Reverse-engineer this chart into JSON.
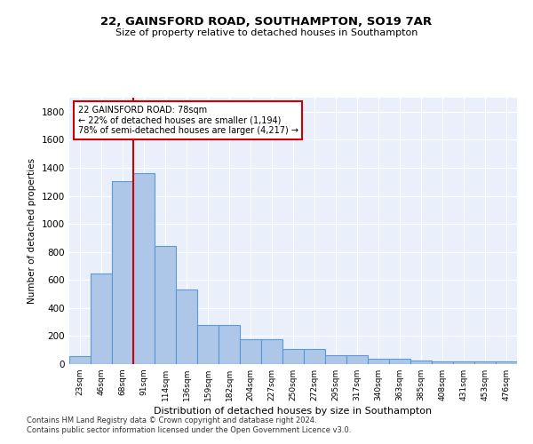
{
  "title_line1": "22, GAINSFORD ROAD, SOUTHAMPTON, SO19 7AR",
  "title_line2": "Size of property relative to detached houses in Southampton",
  "xlabel": "Distribution of detached houses by size in Southampton",
  "ylabel": "Number of detached properties",
  "categories": [
    "23sqm",
    "46sqm",
    "68sqm",
    "91sqm",
    "114sqm",
    "136sqm",
    "159sqm",
    "182sqm",
    "204sqm",
    "227sqm",
    "250sqm",
    "272sqm",
    "295sqm",
    "317sqm",
    "340sqm",
    "363sqm",
    "385sqm",
    "408sqm",
    "431sqm",
    "453sqm",
    "476sqm"
  ],
  "values": [
    55,
    645,
    1305,
    1360,
    840,
    530,
    280,
    280,
    175,
    175,
    108,
    108,
    63,
    63,
    38,
    38,
    25,
    20,
    20,
    20,
    18
  ],
  "bar_color": "#aec6e8",
  "bar_edge_color": "#5b9bd5",
  "annotation_text": "22 GAINSFORD ROAD: 78sqm\n← 22% of detached houses are smaller (1,194)\n78% of semi-detached houses are larger (4,217) →",
  "annotation_box_color": "#ffffff",
  "annotation_box_edge": "#cc0000",
  "ylim": [
    0,
    1900
  ],
  "yticks": [
    0,
    200,
    400,
    600,
    800,
    1000,
    1200,
    1400,
    1600,
    1800
  ],
  "bg_color": "#eaf0fb",
  "grid_color": "#ffffff",
  "footer_line1": "Contains HM Land Registry data © Crown copyright and database right 2024.",
  "footer_line2": "Contains public sector information licensed under the Open Government Licence v3.0.",
  "red_line_color": "#cc0000",
  "red_line_x": 2.5
}
